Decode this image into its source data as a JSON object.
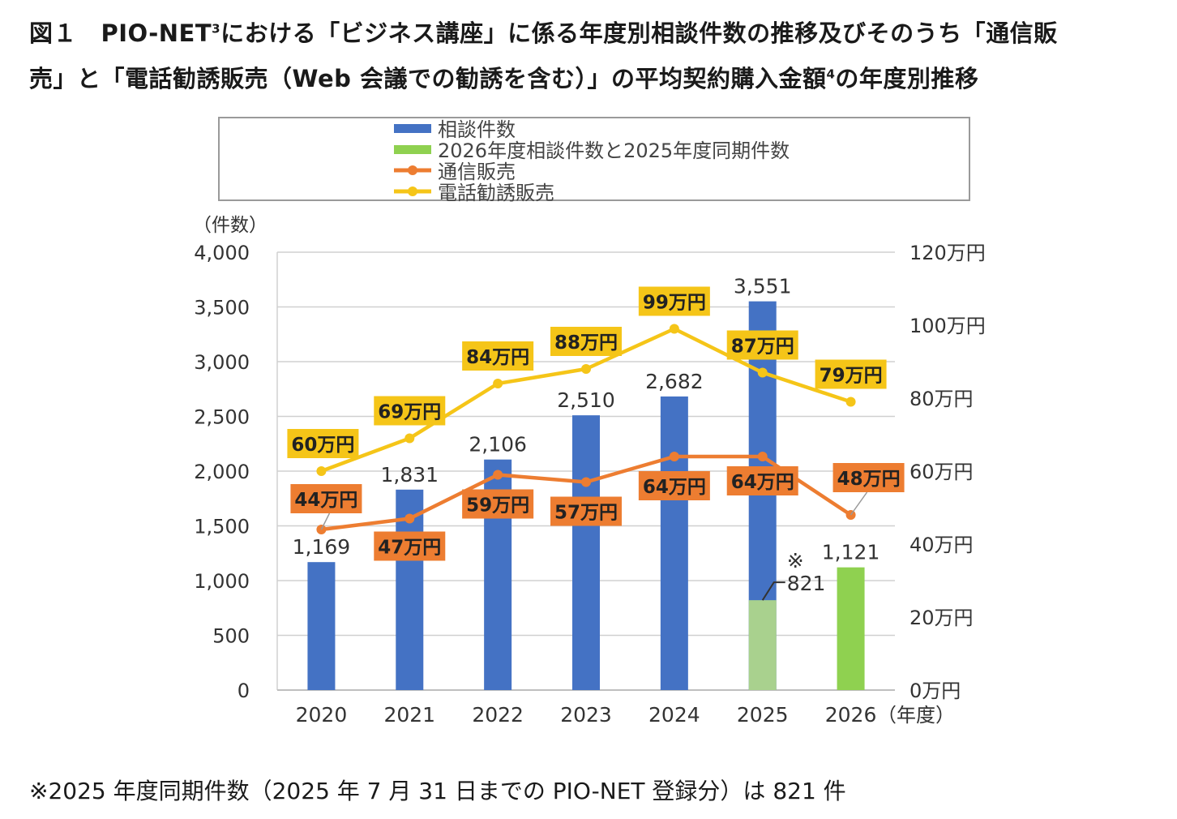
{
  "title": {
    "line1_a": "図１　PIO-NET",
    "line1_sup": "3",
    "line1_b": "における「ビジネス講座」に係る年度別相談件数の推移及びそのうち「通信販",
    "line2_a": "売」と「電話勧誘販売（Web 会議での勧誘を含む）」の平均契約購入金額",
    "line2_sup": "4",
    "line2_b": "の年度別推移"
  },
  "footnote": "※2025 年度同期件数（2025 年 7 月 31 日までの PIO-NET 登録分）は 821 件",
  "colors": {
    "bar_blue": "#4472c4",
    "bar_green": "#8fd150",
    "bar_green_light": "#a9d18e",
    "line_orange": "#ed7d31",
    "line_yellow": "#f5c518",
    "grid": "#d0d0d0",
    "axis_text": "#333333"
  },
  "chart_data": {
    "type": "bar",
    "categories": [
      "2020",
      "2021",
      "2022",
      "2023",
      "2024",
      "2025",
      "2026"
    ],
    "x_axis_unit": "（年度）",
    "y_left_label": "（件数）",
    "y_left_range": [
      0,
      4000
    ],
    "y_left_ticks": [
      "0",
      "500",
      "1,000",
      "1,500",
      "2,000",
      "2,500",
      "3,000",
      "3,500",
      "4,000"
    ],
    "y_right_range": [
      0,
      120
    ],
    "y_right_ticks": [
      "0万円",
      "20万円",
      "40万円",
      "60万円",
      "80万円",
      "100万円",
      "120万円"
    ],
    "grid": true,
    "legend_position": "top",
    "legend": [
      "相談件数",
      "2026年度相談件数と2025年度同期件数",
      "通信販売",
      "電話勧誘販売"
    ],
    "series": [
      {
        "name": "相談件数",
        "type": "bar",
        "axis": "left",
        "values": [
          1169,
          1831,
          2106,
          2510,
          2682,
          3551,
          null
        ],
        "labels": [
          "1,169",
          "1,831",
          "2,106",
          "2,510",
          "2,682",
          "3,551",
          ""
        ]
      },
      {
        "name": "2026年度相談件数と2025年度同期件数",
        "type": "bar",
        "axis": "left",
        "values": [
          null,
          null,
          null,
          null,
          null,
          821,
          1121
        ],
        "labels": [
          "",
          "",
          "",
          "",
          "",
          "821",
          "1,121"
        ],
        "annotation": "※"
      },
      {
        "name": "通信販売",
        "type": "line",
        "axis": "right",
        "values": [
          44,
          47,
          59,
          57,
          64,
          64,
          48
        ],
        "labels": [
          "44万円",
          "47万円",
          "59万円",
          "57万円",
          "64万円",
          "64万円",
          "48万円"
        ]
      },
      {
        "name": "電話勧誘販売",
        "type": "line",
        "axis": "right",
        "values": [
          60,
          69,
          84,
          88,
          99,
          87,
          79
        ],
        "labels": [
          "60万円",
          "69万円",
          "84万円",
          "88万円",
          "99万円",
          "87万円",
          "79万円"
        ]
      }
    ]
  }
}
